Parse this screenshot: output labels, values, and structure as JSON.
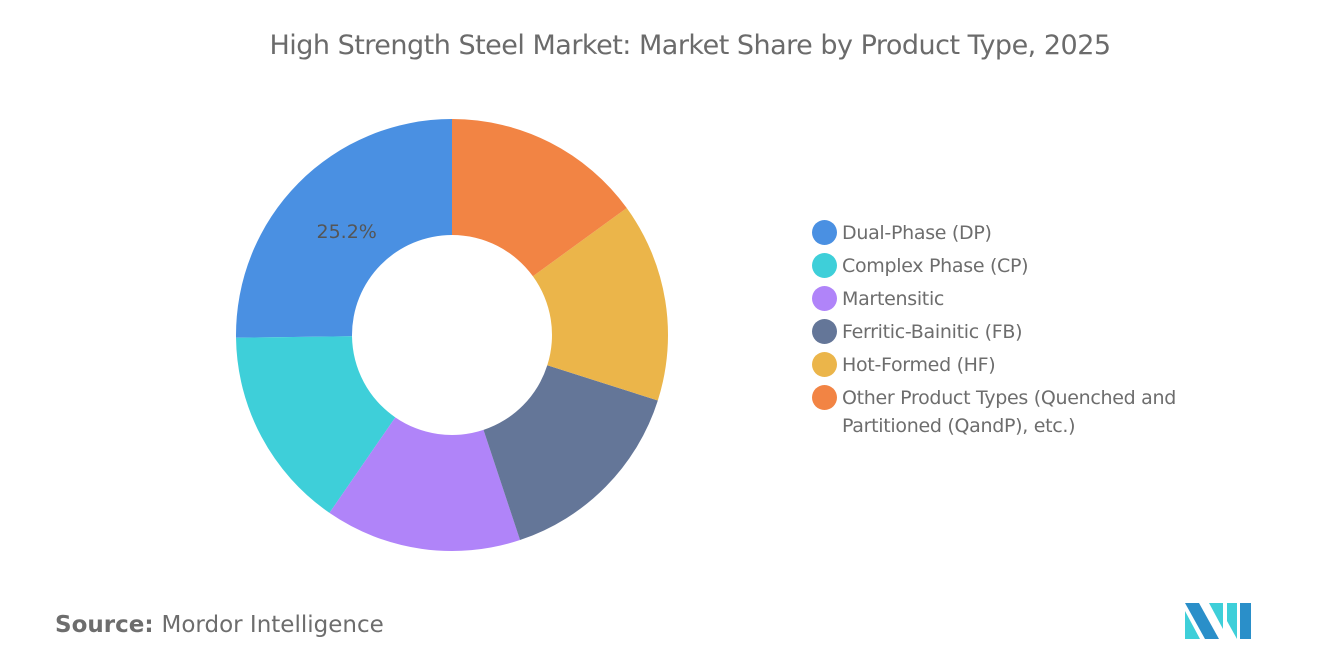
{
  "chart_data": {
    "type": "pie",
    "donut": true,
    "title": "High Strength Steel Market: Market Share by Product Type, 2025",
    "categories": [
      "Dual-Phase (DP)",
      "Complex Phase (CP)",
      "Martensitic",
      "Ferritic-Bainitic (FB)",
      "Hot-Formed (HF)",
      "Other Product Types (Quenched and Partitioned (QandP), etc.)"
    ],
    "values": [
      25.2,
      15.2,
      14.7,
      15.0,
      14.9,
      15.0
    ],
    "colors": [
      "#4a90e2",
      "#3ecfd9",
      "#b084f9",
      "#647698",
      "#ebb54a",
      "#f28444"
    ],
    "data_labels": [
      "25.2%",
      "",
      "",
      "",
      "",
      ""
    ],
    "legend_position": "right",
    "direction": "counterclockwise-from-top"
  },
  "source": {
    "label": "Source:",
    "value": "Mordor Intelligence"
  },
  "logo": {
    "name": "mordor-intelligence-logo"
  }
}
